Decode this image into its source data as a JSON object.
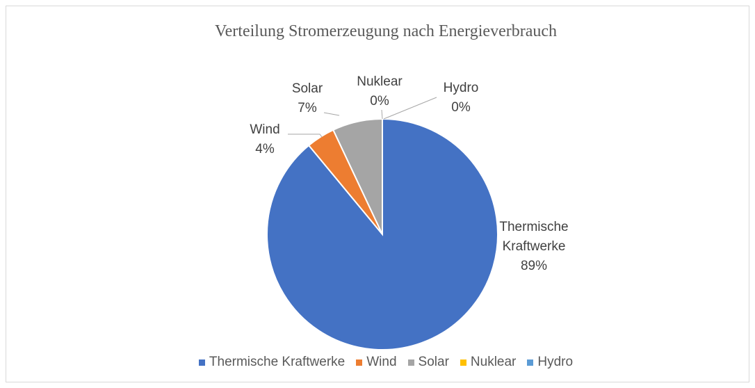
{
  "chart_data": {
    "type": "pie",
    "title": "Verteilung Stromerzeugung nach Energieverbrauch",
    "categories": [
      "Thermische Kraftwerke",
      "Wind",
      "Solar",
      "Nuklear",
      "Hydro"
    ],
    "values": [
      89,
      4,
      7,
      0,
      0
    ],
    "value_labels": [
      "89%",
      "4%",
      "7%",
      "0%",
      "0%"
    ],
    "colors": [
      "#4472c4",
      "#ed7d31",
      "#a5a5a5",
      "#ffc000",
      "#5b9bd5"
    ],
    "legend": "bottom"
  }
}
